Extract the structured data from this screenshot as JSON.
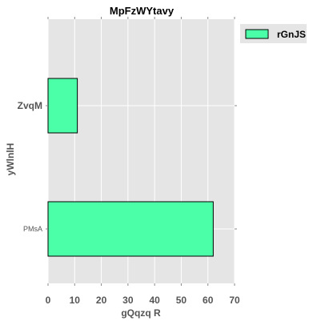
{
  "chart_data": {
    "type": "bar",
    "orientation": "horizontal",
    "title": "MpFzWYtavy",
    "xlabel": "gQqzq R",
    "ylabel": "yWlnlH",
    "categories": [
      "ZvqM",
      "PMsA"
    ],
    "series": [
      {
        "name": "rGnJS",
        "values": [
          11,
          62
        ],
        "color": "#4bffa8"
      }
    ],
    "xlim": [
      0,
      70
    ],
    "xticks": [
      0,
      10,
      20,
      30,
      40,
      50,
      60,
      70
    ],
    "grid": true,
    "legend_position": "top-right-outside",
    "background": "#e5e5e5"
  }
}
